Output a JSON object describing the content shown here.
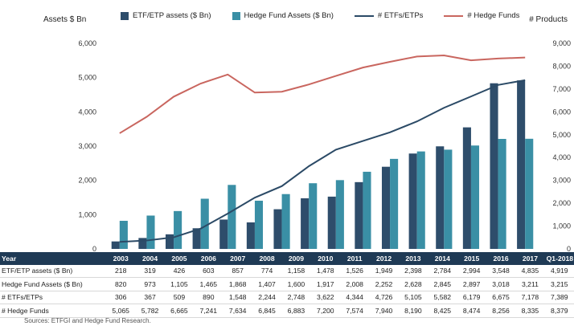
{
  "chart_data": {
    "type": "bar",
    "categories": [
      "2003",
      "2004",
      "2005",
      "2006",
      "2007",
      "2008",
      "2009",
      "2010",
      "2011",
      "2012",
      "2013",
      "2014",
      "2015",
      "2016",
      "2017",
      "Q1-2018"
    ],
    "series": [
      {
        "name": "ETF/ETP assets ($ Bn)",
        "type": "bar",
        "axis": "left",
        "color": "#2e4d6b",
        "values": [
          218,
          319,
          426,
          603,
          857,
          774,
          1158,
          1478,
          1526,
          1949,
          2398,
          2784,
          2994,
          3548,
          4835,
          4919
        ]
      },
      {
        "name": "Hedge Fund Assets ($ Bn)",
        "type": "bar",
        "axis": "left",
        "color": "#3a8fa5",
        "values": [
          820,
          973,
          1105,
          1465,
          1868,
          1407,
          1600,
          1917,
          2008,
          2252,
          2628,
          2845,
          2897,
          3018,
          3211,
          3215
        ]
      },
      {
        "name": "# ETFs/ETPs",
        "type": "line",
        "axis": "right",
        "color": "#2b4a66",
        "values": [
          306,
          367,
          509,
          890,
          1548,
          2244,
          2748,
          3622,
          4344,
          4726,
          5105,
          5582,
          6179,
          6675,
          7178,
          7389
        ]
      },
      {
        "name": "# Hedge Funds",
        "type": "line",
        "axis": "right",
        "color": "#c9665f",
        "values": [
          5065,
          5782,
          6665,
          7241,
          7634,
          6845,
          6883,
          7200,
          7574,
          7940,
          8190,
          8425,
          8474,
          8256,
          8335,
          8379
        ]
      }
    ],
    "ylabel": "Assets $ Bn",
    "y2label": "# Products",
    "ylim": [
      0,
      6000
    ],
    "y2lim": [
      0,
      9000
    ],
    "yticks": [
      "0",
      "1,000",
      "2,000",
      "3,000",
      "4,000",
      "5,000",
      "6,000"
    ],
    "y2ticks": [
      "0",
      "1,000",
      "2,000",
      "3,000",
      "4,000",
      "5,000",
      "6,000",
      "7,000",
      "8,000",
      "9,000"
    ],
    "grid": false,
    "legend": "top"
  },
  "table": {
    "header": "Year",
    "rows": [
      {
        "label": "ETF/ETP assets ($ Bn)",
        "values": [
          "218",
          "319",
          "426",
          "603",
          "857",
          "774",
          "1,158",
          "1,478",
          "1,526",
          "1,949",
          "2,398",
          "2,784",
          "2,994",
          "3,548",
          "4,835",
          "4,919"
        ]
      },
      {
        "label": "Hedge Fund Assets ($ Bn)",
        "values": [
          "820",
          "973",
          "1,105",
          "1,465",
          "1,868",
          "1,407",
          "1,600",
          "1,917",
          "2,008",
          "2,252",
          "2,628",
          "2,845",
          "2,897",
          "3,018",
          "3,211",
          "3,215"
        ]
      },
      {
        "label": "# ETFs/ETPs",
        "values": [
          "306",
          "367",
          "509",
          "890",
          "1,548",
          "2,244",
          "2,748",
          "3,622",
          "4,344",
          "4,726",
          "5,105",
          "5,582",
          "6,179",
          "6,675",
          "7,178",
          "7,389"
        ]
      },
      {
        "label": "# Hedge Funds",
        "values": [
          "5,065",
          "5,782",
          "6,665",
          "7,241",
          "7,634",
          "6,845",
          "6,883",
          "7,200",
          "7,574",
          "7,940",
          "8,190",
          "8,425",
          "8,474",
          "8,256",
          "8,335",
          "8,379"
        ]
      }
    ]
  },
  "source": "Sources: ETFGI and Hedge Fund Research."
}
